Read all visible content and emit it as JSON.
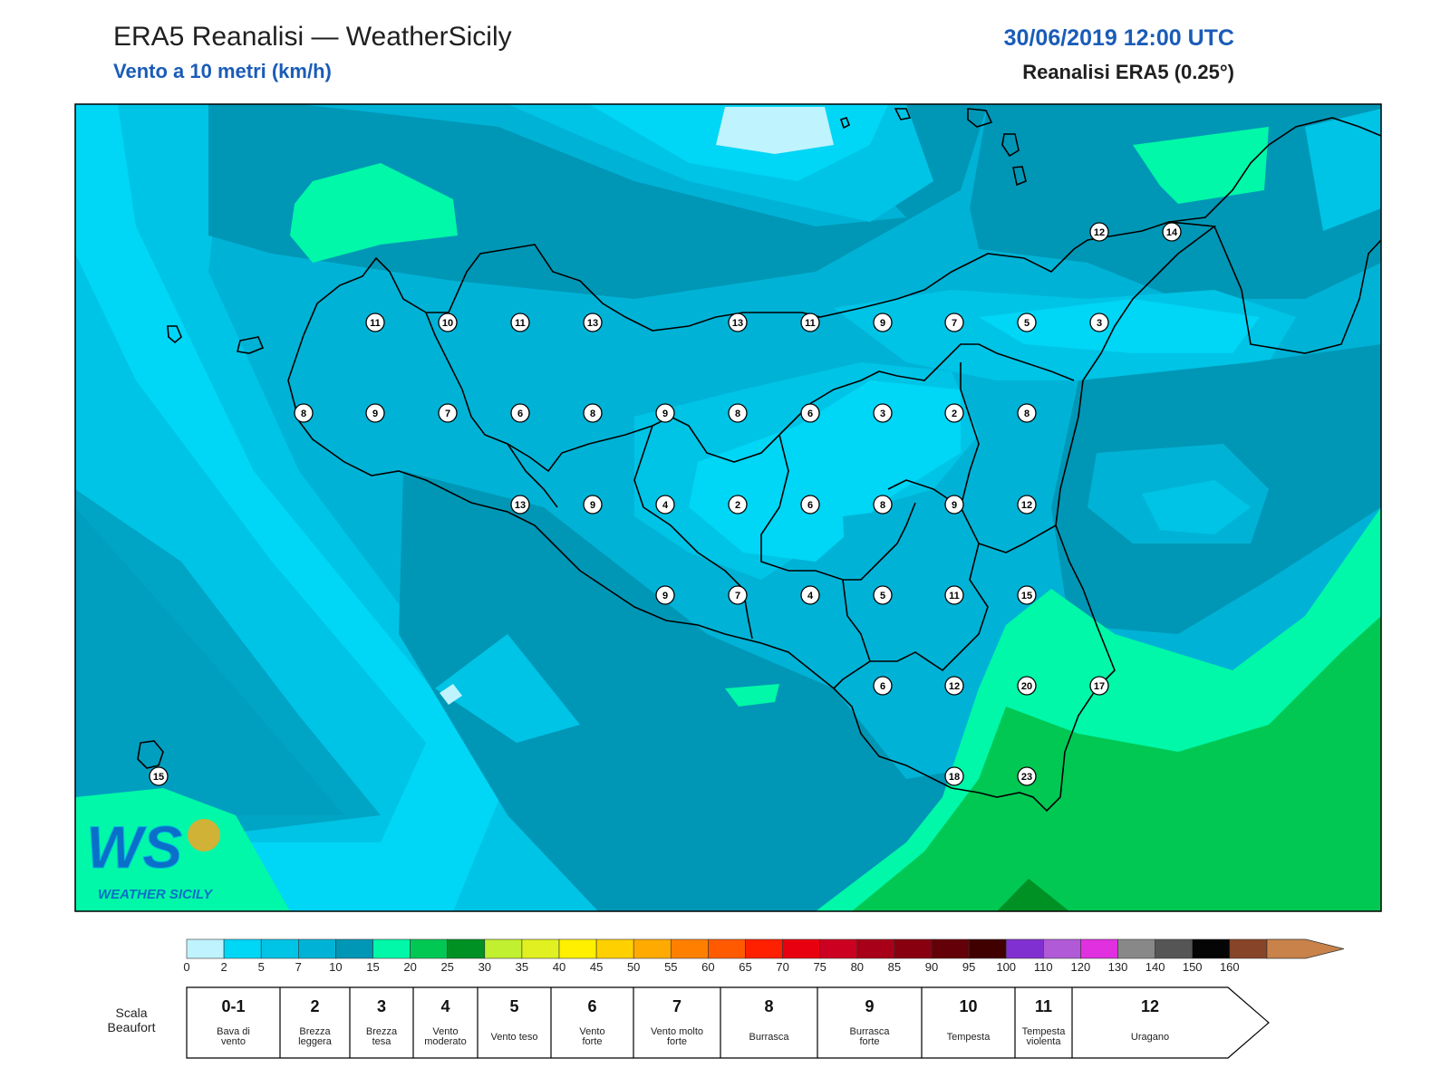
{
  "header": {
    "title": "ERA5 Reanalisi — WeatherSicily",
    "subtitle": "Vento a 10 metri (km/h)",
    "datetime": "30/06/2019 12:00 UTC",
    "source": "Reanalisi ERA5 (0.25°)"
  },
  "logo": {
    "letters": "WS",
    "text": "WEATHER SICILY"
  },
  "map": {
    "stations": [
      {
        "v": "12",
        "row": "r0",
        "col": "c11"
      },
      {
        "v": "14",
        "row": "r0",
        "col": "c12"
      },
      {
        "v": "11",
        "row": "r1",
        "col": "c3"
      },
      {
        "v": "10",
        "row": "r1",
        "col": "c4"
      },
      {
        "v": "11",
        "row": "r1",
        "col": "c5"
      },
      {
        "v": "13",
        "row": "r1",
        "col": "c6"
      },
      {
        "v": "13",
        "row": "r1",
        "col": "c8"
      },
      {
        "v": "11",
        "row": "r1",
        "col": "c9"
      },
      {
        "v": "9",
        "row": "r1",
        "col": "c10"
      },
      {
        "v": "7",
        "row": "r1",
        "col": "c11b"
      },
      {
        "v": "5",
        "row": "r1",
        "col": "c12b"
      },
      {
        "v": "3",
        "row": "r1",
        "col": "c13"
      },
      {
        "v": "8",
        "row": "r2",
        "col": "c2"
      },
      {
        "v": "9",
        "row": "r2",
        "col": "c3"
      },
      {
        "v": "7",
        "row": "r2",
        "col": "c4"
      },
      {
        "v": "6",
        "row": "r2",
        "col": "c5"
      },
      {
        "v": "8",
        "row": "r2",
        "col": "c6"
      },
      {
        "v": "9",
        "row": "r2",
        "col": "c7"
      },
      {
        "v": "8",
        "row": "r2",
        "col": "c8"
      },
      {
        "v": "6",
        "row": "r2",
        "col": "c9"
      },
      {
        "v": "3",
        "row": "r2",
        "col": "c10"
      },
      {
        "v": "2",
        "row": "r2",
        "col": "c11b"
      },
      {
        "v": "8",
        "row": "r2",
        "col": "c12b"
      },
      {
        "v": "13",
        "row": "r3",
        "col": "c5"
      },
      {
        "v": "9",
        "row": "r3",
        "col": "c6"
      },
      {
        "v": "4",
        "row": "r3",
        "col": "c7"
      },
      {
        "v": "2",
        "row": "r3",
        "col": "c8"
      },
      {
        "v": "6",
        "row": "r3",
        "col": "c9"
      },
      {
        "v": "8",
        "row": "r3",
        "col": "c10"
      },
      {
        "v": "9",
        "row": "r3",
        "col": "c11b"
      },
      {
        "v": "12",
        "row": "r3",
        "col": "c12b"
      },
      {
        "v": "9",
        "row": "r4",
        "col": "c7"
      },
      {
        "v": "7",
        "row": "r4",
        "col": "c8"
      },
      {
        "v": "4",
        "row": "r4",
        "col": "c9"
      },
      {
        "v": "5",
        "row": "r4",
        "col": "c10"
      },
      {
        "v": "11",
        "row": "r4",
        "col": "c11b"
      },
      {
        "v": "15",
        "row": "r4",
        "col": "c12b"
      },
      {
        "v": "6",
        "row": "r5",
        "col": "c10"
      },
      {
        "v": "12",
        "row": "r5",
        "col": "c11b"
      },
      {
        "v": "20",
        "row": "r5",
        "col": "c12b"
      },
      {
        "v": "17",
        "row": "r5",
        "col": "c13"
      },
      {
        "v": "15",
        "row": "r6",
        "col": "c1"
      },
      {
        "v": "18",
        "row": "r6",
        "col": "c11b"
      },
      {
        "v": "23",
        "row": "r6",
        "col": "c12b"
      }
    ]
  },
  "colorbar": {
    "ticks": [
      "0",
      "2",
      "5",
      "7",
      "10",
      "15",
      "20",
      "25",
      "30",
      "35",
      "40",
      "45",
      "50",
      "55",
      "60",
      "65",
      "70",
      "75",
      "80",
      "85",
      "90",
      "95",
      "100",
      "110",
      "120",
      "130",
      "140",
      "150",
      "160"
    ],
    "colors": [
      "#bff3fd",
      "#00d6f6",
      "#00c4e6",
      "#00b3d6",
      "#0097b6",
      "#00f8a8",
      "#00c853",
      "#009124",
      "#c0f030",
      "#e0f020",
      "#fff000",
      "#ffd000",
      "#ffaa00",
      "#ff8000",
      "#ff5a00",
      "#ff2000",
      "#e80010",
      "#cc0020",
      "#a80018",
      "#880010",
      "#640008",
      "#400000",
      "#8030d0",
      "#b05ad8",
      "#e030e0",
      "#888888",
      "#555555",
      "#050505",
      "#884428",
      "#c8824a"
    ]
  },
  "beaufort": {
    "label": "Scala\nBeaufort",
    "label_line1": "Scala",
    "label_line2": "Beaufort",
    "classes": [
      {
        "n": "0-1",
        "d1": "Bava di",
        "d2": "vento"
      },
      {
        "n": "2",
        "d1": "Brezza",
        "d2": "leggera"
      },
      {
        "n": "3",
        "d1": "Brezza",
        "d2": "tesa"
      },
      {
        "n": "4",
        "d1": "Vento",
        "d2": "moderato"
      },
      {
        "n": "5",
        "d1": "Vento teso",
        "d2": ""
      },
      {
        "n": "6",
        "d1": "Vento",
        "d2": "forte"
      },
      {
        "n": "7",
        "d1": "Vento molto",
        "d2": "forte"
      },
      {
        "n": "8",
        "d1": "Burrasca",
        "d2": ""
      },
      {
        "n": "9",
        "d1": "Burrasca",
        "d2": "forte"
      },
      {
        "n": "10",
        "d1": "Tempesta",
        "d2": ""
      },
      {
        "n": "11",
        "d1": "Tempesta",
        "d2": "violenta"
      },
      {
        "n": "12",
        "d1": "Uragano",
        "d2": ""
      }
    ]
  }
}
